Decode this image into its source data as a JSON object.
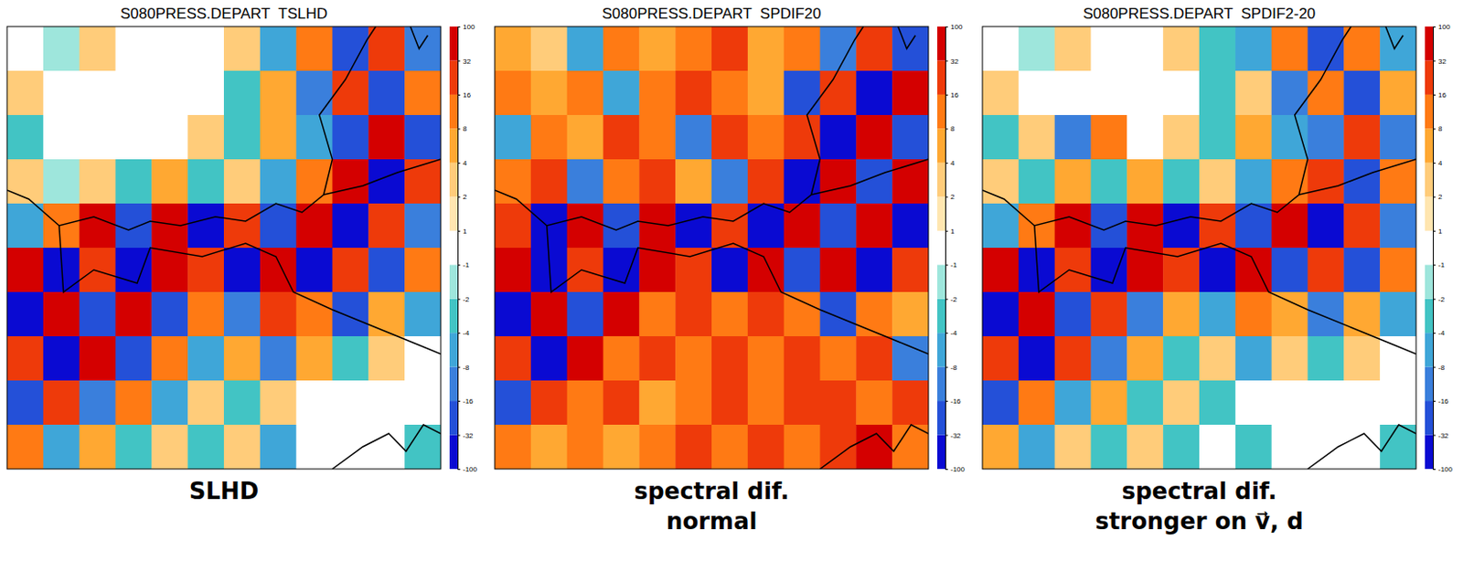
{
  "chart_data": [
    {
      "type": "heatmap",
      "title": "S080PRESS.DEPART  TSLHD",
      "caption": [
        "SLHD"
      ],
      "colorbar": {
        "range": [
          -100,
          100
        ],
        "ticks": [
          -100,
          -32,
          -16,
          -8,
          -4,
          -2,
          -1,
          1,
          2,
          4,
          8,
          16,
          32,
          100
        ],
        "colors": [
          "#0a0ad2",
          "#2450d8",
          "#3a7fdc",
          "#3fa6d8",
          "#42c4c4",
          "#9ee6dc",
          "#ffffff",
          "#ffe6b0",
          "#ffcc7a",
          "#ffa832",
          "#ff7a14",
          "#ee3a0a",
          "#d40000"
        ]
      },
      "cells": [
        [
          0,
          -1.5,
          3,
          0,
          0,
          0,
          3,
          -6,
          12,
          -24,
          24,
          -12
        ],
        [
          3,
          0,
          0,
          0,
          0,
          0,
          -3,
          6,
          -12,
          24,
          -24,
          12
        ],
        [
          -3,
          0,
          0,
          0,
          0,
          3,
          -3,
          6,
          -6,
          -24,
          50,
          -24
        ],
        [
          3,
          -1.5,
          3,
          -3,
          6,
          -3,
          3,
          -6,
          12,
          50,
          -50,
          24
        ],
        [
          -6,
          12,
          50,
          -24,
          50,
          -50,
          24,
          -24,
          50,
          -50,
          24,
          -12
        ],
        [
          50,
          -50,
          24,
          -50,
          50,
          24,
          -50,
          50,
          -50,
          24,
          -24,
          12
        ],
        [
          -50,
          50,
          -24,
          50,
          -24,
          12,
          -12,
          24,
          12,
          -24,
          6,
          -6
        ],
        [
          24,
          -50,
          50,
          -24,
          12,
          -6,
          6,
          -12,
          6,
          -3,
          3,
          0
        ],
        [
          -24,
          24,
          -12,
          12,
          -6,
          3,
          -3,
          3,
          0,
          0,
          0,
          0
        ],
        [
          12,
          -6,
          6,
          -3,
          3,
          -3,
          3,
          -6,
          0,
          0,
          0,
          -3
        ]
      ]
    },
    {
      "type": "heatmap",
      "title": "S080PRESS.DEPART  SPDIF20",
      "caption": [
        "spectral dif.",
        "normal"
      ],
      "colorbar": {
        "range": [
          -100,
          100
        ],
        "ticks": [
          -100,
          -32,
          -16,
          -8,
          -4,
          -2,
          -1,
          1,
          2,
          4,
          8,
          16,
          32,
          100
        ],
        "colors": [
          "#0a0ad2",
          "#2450d8",
          "#3a7fdc",
          "#3fa6d8",
          "#42c4c4",
          "#9ee6dc",
          "#ffffff",
          "#ffe6b0",
          "#ffcc7a",
          "#ffa832",
          "#ff7a14",
          "#ee3a0a",
          "#d40000"
        ]
      },
      "cells": [
        [
          6,
          3,
          -6,
          12,
          6,
          12,
          24,
          6,
          12,
          -12,
          24,
          -24
        ],
        [
          12,
          6,
          12,
          -6,
          12,
          24,
          12,
          6,
          -24,
          24,
          -50,
          50
        ],
        [
          -6,
          12,
          6,
          24,
          12,
          -12,
          24,
          12,
          24,
          -50,
          50,
          -24
        ],
        [
          12,
          24,
          -12,
          12,
          24,
          6,
          -12,
          24,
          -50,
          50,
          -24,
          50
        ],
        [
          24,
          -50,
          50,
          -24,
          50,
          -50,
          24,
          -50,
          50,
          -24,
          50,
          -50
        ],
        [
          50,
          -50,
          24,
          -50,
          50,
          24,
          -50,
          50,
          -24,
          50,
          -50,
          24
        ],
        [
          -50,
          50,
          -24,
          50,
          12,
          24,
          12,
          24,
          12,
          -24,
          12,
          6
        ],
        [
          24,
          -50,
          50,
          12,
          24,
          12,
          24,
          12,
          24,
          12,
          24,
          -12
        ],
        [
          -24,
          24,
          12,
          24,
          6,
          12,
          24,
          12,
          24,
          24,
          12,
          24
        ],
        [
          12,
          6,
          12,
          6,
          12,
          24,
          12,
          24,
          12,
          24,
          50,
          12
        ]
      ]
    },
    {
      "type": "heatmap",
      "title": "S080PRESS.DEPART  SPDIF2-20",
      "caption": [
        "spectral dif.",
        "stronger on v⃗, d"
      ],
      "colorbar": {
        "range": [
          -100,
          100
        ],
        "ticks": [
          -100,
          -32,
          -16,
          -8,
          -4,
          -2,
          -1,
          1,
          2,
          4,
          8,
          16,
          32,
          100
        ],
        "colors": [
          "#0a0ad2",
          "#2450d8",
          "#3a7fdc",
          "#3fa6d8",
          "#42c4c4",
          "#9ee6dc",
          "#ffffff",
          "#ffe6b0",
          "#ffcc7a",
          "#ffa832",
          "#ff7a14",
          "#ee3a0a",
          "#d40000"
        ]
      },
      "cells": [
        [
          0,
          -1.5,
          3,
          0,
          0,
          3,
          -3,
          -6,
          12,
          -24,
          12,
          -6
        ],
        [
          3,
          0,
          0,
          0,
          0,
          0,
          -3,
          3,
          -12,
          12,
          -24,
          6
        ],
        [
          -3,
          3,
          -12,
          12,
          0,
          3,
          -3,
          6,
          -6,
          -12,
          24,
          -12
        ],
        [
          3,
          -3,
          6,
          -3,
          6,
          -3,
          3,
          -6,
          12,
          24,
          -24,
          12
        ],
        [
          -6,
          12,
          50,
          -24,
          50,
          -50,
          24,
          -24,
          50,
          -50,
          24,
          -12
        ],
        [
          50,
          -50,
          24,
          -50,
          50,
          24,
          -50,
          50,
          -24,
          24,
          -24,
          12
        ],
        [
          -50,
          50,
          -24,
          24,
          -12,
          6,
          -6,
          12,
          6,
          -12,
          6,
          -6
        ],
        [
          24,
          -50,
          24,
          -12,
          6,
          -3,
          3,
          -6,
          3,
          -3,
          3,
          0
        ],
        [
          -24,
          12,
          -6,
          6,
          -3,
          3,
          -3,
          0,
          0,
          0,
          0,
          0
        ],
        [
          6,
          -6,
          3,
          -3,
          3,
          -3,
          0,
          -3,
          0,
          0,
          0,
          -3
        ]
      ]
    }
  ]
}
